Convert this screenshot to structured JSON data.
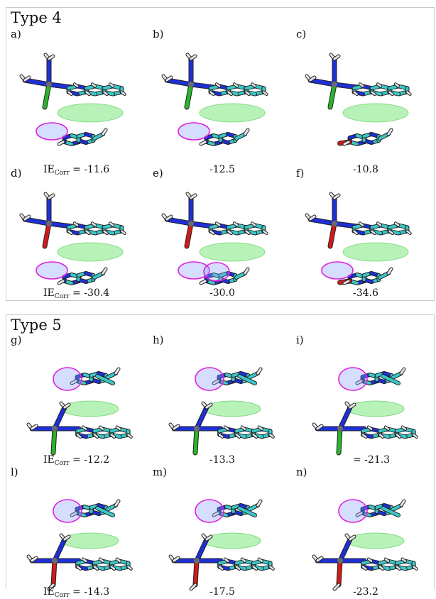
{
  "sections": [
    {
      "title": "Type 4",
      "ie_label": "IE",
      "ie_sub": "Corr",
      "rows": [
        [
          {
            "letter": "a)",
            "value": "= -11.6",
            "label": true,
            "bottom": "Cl",
            "ring": "pyrimidine",
            "circles": 1
          },
          {
            "letter": "b)",
            "value": "-12.5",
            "bottom": "Cl",
            "ring": "pyrimidine",
            "circles": 1
          },
          {
            "letter": "c)",
            "value": "-10.8",
            "bottom": "Cl",
            "ring": "uracil",
            "circles": 0
          }
        ],
        [
          {
            "letter": "d)",
            "value": "= -30.4",
            "label": true,
            "bottom": "O",
            "ring": "pyrimidine",
            "circles": 1
          },
          {
            "letter": "e)",
            "value": "-30.0",
            "bottom": "O",
            "ring": "pyrimidine",
            "circles": 2
          },
          {
            "letter": "f)",
            "value": "-34.6",
            "bottom": "O",
            "ring": "uracil",
            "circles": 1
          }
        ]
      ]
    },
    {
      "title": "Type 5",
      "ie_label": "IE",
      "ie_sub": "Corr",
      "rows": [
        [
          {
            "letter": "g)",
            "value": "= -12.2",
            "label": true,
            "bottom": "Cl"
          },
          {
            "letter": "h)",
            "value": "-13.3",
            "bottom": "Cl"
          },
          {
            "letter": "i)",
            "value": "= -21.3",
            "bottom": "Cl"
          }
        ],
        [
          {
            "letter": "l)",
            "value": "= -14.3",
            "label": true,
            "bottom": "OH"
          },
          {
            "letter": "m)",
            "value": "-17.5",
            "bottom": "OH"
          },
          {
            "letter": "n)",
            "value": "-23.2",
            "bottom": "OH"
          }
        ]
      ]
    }
  ],
  "colors": {
    "carbon": "#3cc6c6",
    "nitrogen": "#1f2fd8",
    "hydrogen": "#e6e6e6",
    "metal": "#6b6b6b",
    "chlorine": "#2ab42a",
    "oxygen": "#d11a1a",
    "isosurface": "#7ee87e",
    "circle": "#e020e0"
  }
}
